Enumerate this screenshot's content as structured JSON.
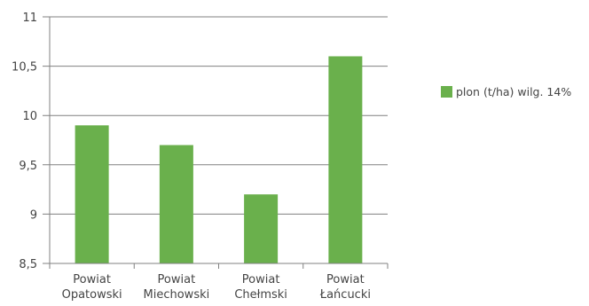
{
  "chart_data": {
    "type": "bar",
    "categories": [
      [
        "Powiat",
        "Opatowski"
      ],
      [
        "Powiat",
        "Miechowski"
      ],
      [
        "Powiat",
        "Chełmski"
      ],
      [
        "Powiat",
        "Łańcucki"
      ]
    ],
    "series": [
      {
        "name": "plon (t/ha) wilg. 14%",
        "values": [
          9.9,
          9.7,
          9.2,
          10.6
        ],
        "color": "#6ab04c"
      }
    ],
    "ylim": [
      8.5,
      11
    ],
    "yticks": [
      8.5,
      9,
      9.5,
      10,
      10.5,
      11
    ],
    "ytick_labels": [
      "8,5",
      "9",
      "9,5",
      "10",
      "10,5",
      "11"
    ],
    "grid": true,
    "legend_position": "right"
  }
}
